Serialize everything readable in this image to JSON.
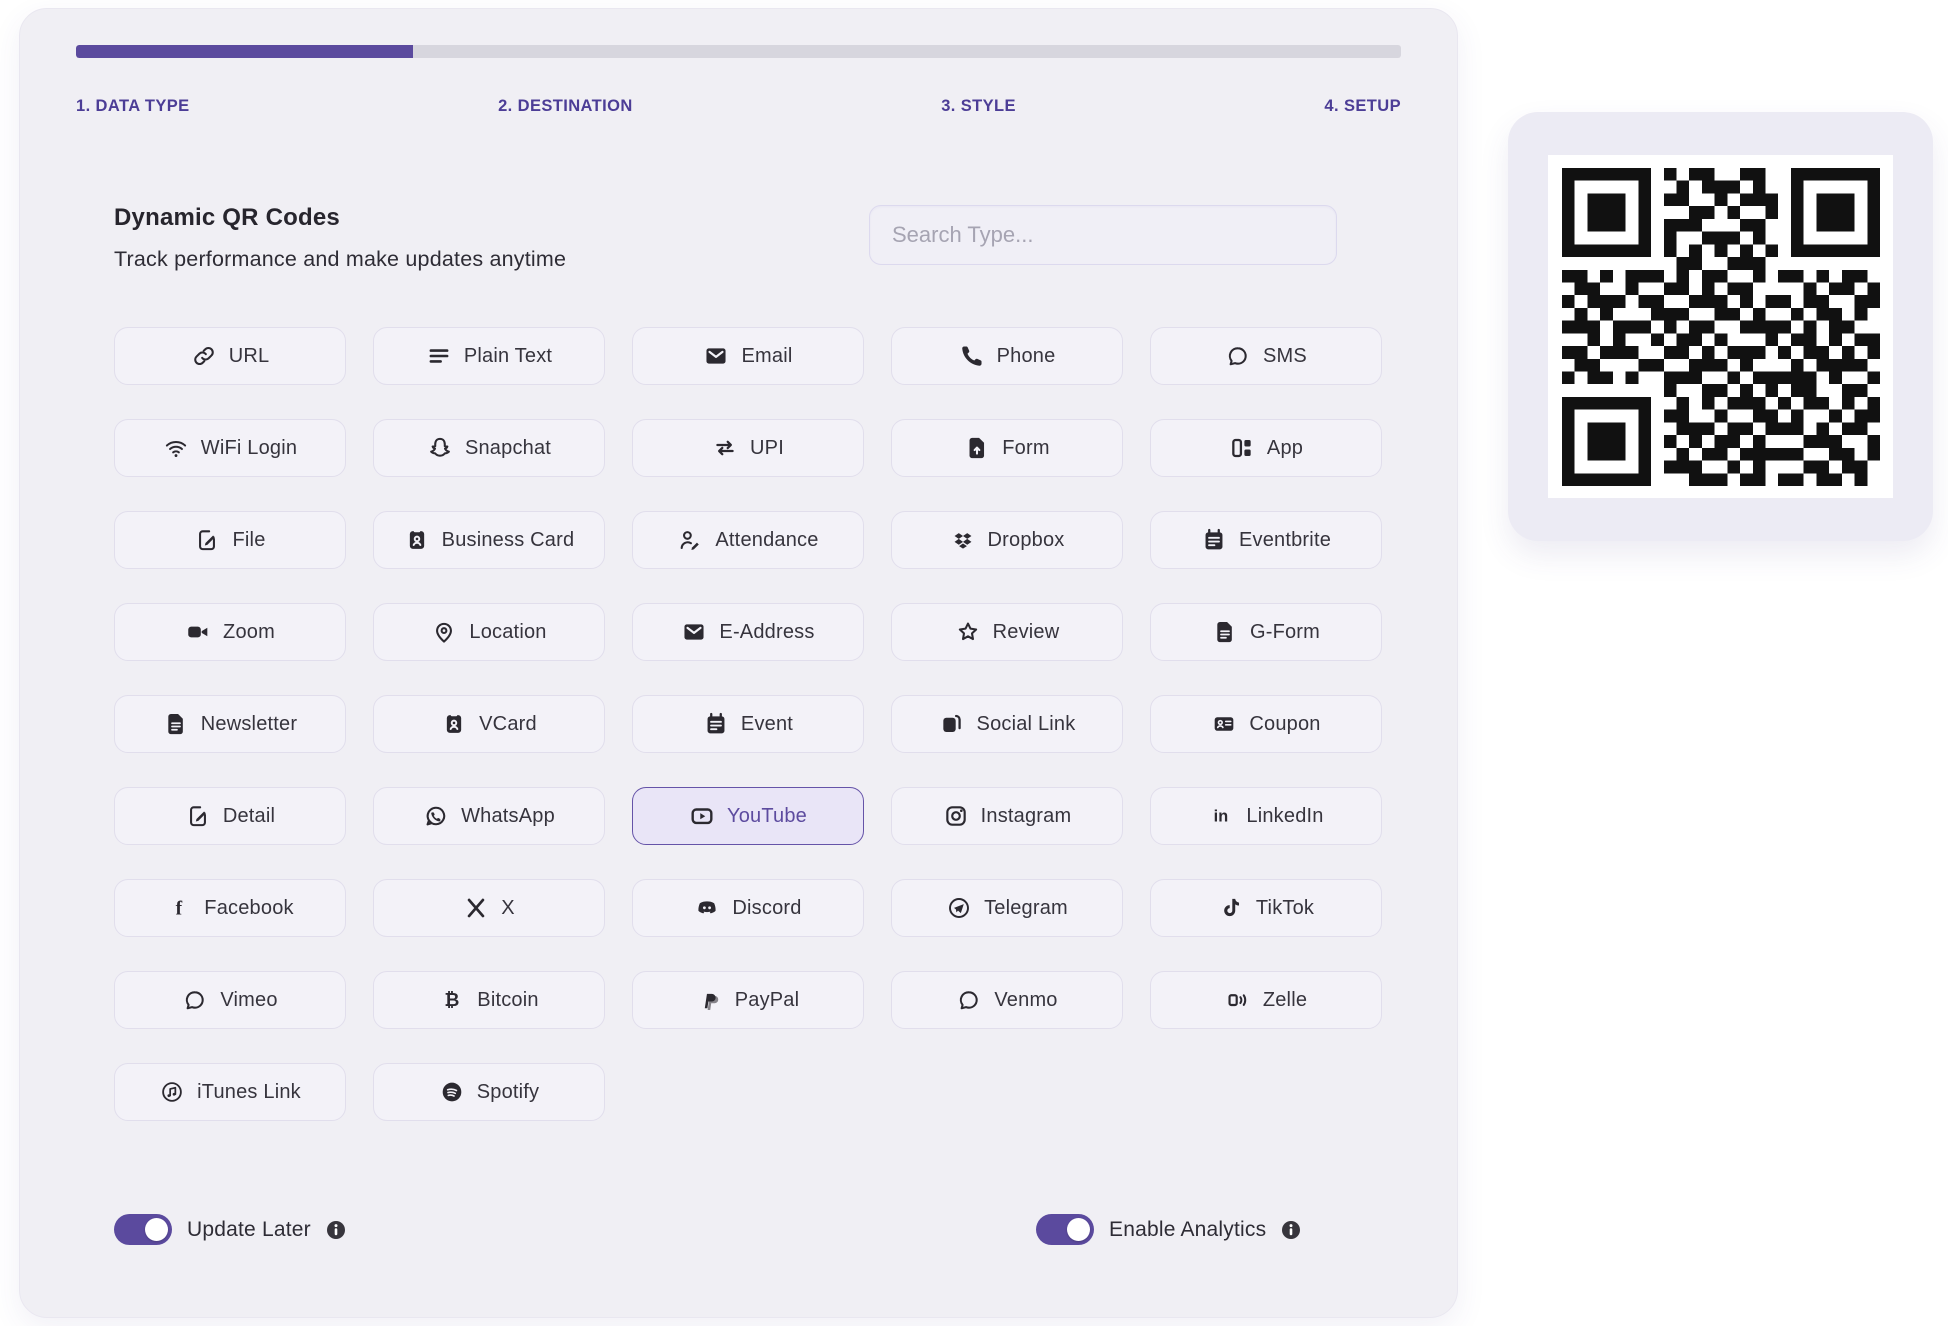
{
  "stepper": {
    "progress_percent": 25.4,
    "steps": [
      {
        "label": "1. DATA TYPE"
      },
      {
        "label": "2. DESTINATION"
      },
      {
        "label": "3. STYLE"
      },
      {
        "label": "4. SETUP"
      }
    ]
  },
  "header": {
    "title": "Dynamic QR Codes",
    "subtitle": "Track performance and make updates anytime"
  },
  "search": {
    "placeholder": "Search Type..."
  },
  "selected_type": "YouTube",
  "types": [
    {
      "label": "URL",
      "icon": "link"
    },
    {
      "label": "Plain Text",
      "icon": "text-lines"
    },
    {
      "label": "Email",
      "icon": "envelope"
    },
    {
      "label": "Phone",
      "icon": "phone"
    },
    {
      "label": "SMS",
      "icon": "chat"
    },
    {
      "label": "WiFi Login",
      "icon": "wifi"
    },
    {
      "label": "Snapchat",
      "icon": "snapchat-ghost"
    },
    {
      "label": "UPI",
      "icon": "swap-arrows"
    },
    {
      "label": "Form",
      "icon": "doc-upload"
    },
    {
      "label": "App",
      "icon": "app-grid"
    },
    {
      "label": "File",
      "icon": "doc-pencil"
    },
    {
      "label": "Business Card",
      "icon": "id-badge"
    },
    {
      "label": "Attendance",
      "icon": "person-pencil"
    },
    {
      "label": "Dropbox",
      "icon": "dropbox"
    },
    {
      "label": "Eventbrite",
      "icon": "calendar"
    },
    {
      "label": "Zoom",
      "icon": "video-camera"
    },
    {
      "label": "Location",
      "icon": "map-pin"
    },
    {
      "label": "E-Address",
      "icon": "envelope"
    },
    {
      "label": "Review",
      "icon": "star"
    },
    {
      "label": "G-Form",
      "icon": "doc-lines"
    },
    {
      "label": "Newsletter",
      "icon": "doc-lines"
    },
    {
      "label": "VCard",
      "icon": "id-badge"
    },
    {
      "label": "Event",
      "icon": "calendar"
    },
    {
      "label": "Social Link",
      "icon": "photo-stack"
    },
    {
      "label": "Coupon",
      "icon": "id-card"
    },
    {
      "label": "Detail",
      "icon": "doc-pencil"
    },
    {
      "label": "WhatsApp",
      "icon": "whatsapp"
    },
    {
      "label": "YouTube",
      "icon": "youtube"
    },
    {
      "label": "Instagram",
      "icon": "instagram"
    },
    {
      "label": "LinkedIn",
      "icon": "linkedin"
    },
    {
      "label": "Facebook",
      "icon": "facebook"
    },
    {
      "label": "X",
      "icon": "x-logo"
    },
    {
      "label": "Discord",
      "icon": "discord"
    },
    {
      "label": "Telegram",
      "icon": "telegram"
    },
    {
      "label": "TikTok",
      "icon": "tiktok"
    },
    {
      "label": "Vimeo",
      "icon": "chat"
    },
    {
      "label": "Bitcoin",
      "icon": "bitcoin"
    },
    {
      "label": "PayPal",
      "icon": "paypal"
    },
    {
      "label": "Venmo",
      "icon": "chat"
    },
    {
      "label": "Zelle",
      "icon": "zelle"
    },
    {
      "label": "iTunes Link",
      "icon": "music-circle"
    },
    {
      "label": "Spotify",
      "icon": "spotify"
    }
  ],
  "toggles": {
    "update_later": {
      "label": "Update Later",
      "enabled": true
    },
    "analytics": {
      "label": "Enable Analytics",
      "enabled": true
    }
  },
  "colors": {
    "accent": "#5b4a9e",
    "selected_bg": "#e9e5f7",
    "selected_border": "#6553a8",
    "card_bg": "#f0eff4",
    "qr_dark": "#111111"
  },
  "qr": {
    "matrix": [
      "1111111010110011001111111",
      "1000001001011101001000001",
      "1011101011001011101011101",
      "1011101000110100101011101",
      "1011101011100011001011101",
      "1000001010011101001000001",
      "1111111010101010101111111",
      "0000000001100111000000000",
      "1101011101011001011010110",
      "0110010011010110000101101",
      "1011101100111010110110011",
      "0101000111001101001011010",
      "1110111010110011110101100",
      "0010100101101000101101011",
      "1101110011010111010110101",
      "0110001100111010001011110",
      "1011010011100101111101001",
      "0000000010011010101100110",
      "1111111001010111010110101",
      "1000001011001001101001011",
      "1011101001110110111010110",
      "1011101010101101000111001",
      "1011101001011011111001101",
      "1000001011100101000110110",
      "1111111000111011011011010"
    ]
  }
}
